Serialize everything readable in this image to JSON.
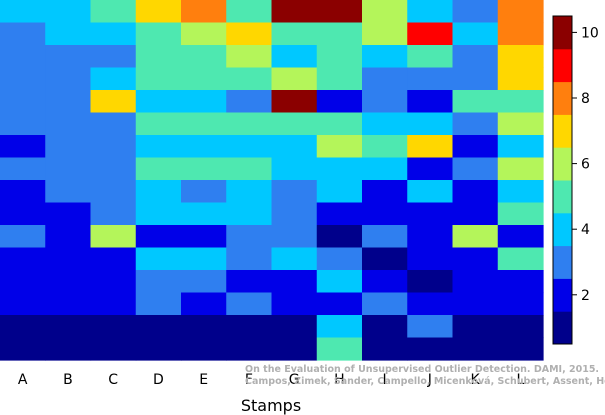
{
  "chart_data": {
    "type": "heatmap",
    "title": "",
    "xlabel": "Stamps",
    "ylabel": "",
    "categories": [
      "A",
      "B",
      "C",
      "D",
      "E",
      "F",
      "G",
      "H",
      "I",
      "J",
      "K",
      "L"
    ],
    "colorbar": {
      "min": 0.5,
      "max": 10.5,
      "ticks": [
        2,
        4,
        6,
        8,
        10
      ],
      "colors": [
        "#00008b",
        "#0000e8",
        "#2f7ff0",
        "#00c8ff",
        "#4ee8b0",
        "#b4f55a",
        "#ffd700",
        "#ff7f0e",
        "#ff0000",
        "#8b0000"
      ]
    },
    "values": [
      [
        4,
        4,
        5,
        7,
        8,
        5,
        10,
        10,
        6,
        4,
        3,
        8
      ],
      [
        3,
        4,
        4,
        5,
        6,
        7,
        5,
        5,
        6,
        9,
        4,
        8
      ],
      [
        3,
        3,
        3,
        5,
        5,
        6,
        4,
        5,
        4,
        5,
        3,
        7
      ],
      [
        3,
        3,
        4,
        5,
        5,
        5,
        6,
        5,
        3,
        3,
        3,
        7
      ],
      [
        3,
        3,
        7,
        4,
        4,
        3,
        10,
        2,
        3,
        2,
        5,
        5
      ],
      [
        3,
        3,
        3,
        5,
        5,
        5,
        5,
        5,
        4,
        4,
        3,
        6
      ],
      [
        2,
        3,
        3,
        4,
        4,
        4,
        4,
        6,
        5,
        7,
        2,
        4
      ],
      [
        3,
        3,
        3,
        5,
        5,
        5,
        4,
        4,
        4,
        2,
        3,
        6
      ],
      [
        2,
        3,
        3,
        4,
        3,
        4,
        3,
        4,
        2,
        4,
        2,
        4
      ],
      [
        2,
        2,
        3,
        4,
        4,
        4,
        3,
        2,
        2,
        2,
        2,
        5
      ],
      [
        3,
        2,
        6,
        2,
        2,
        3,
        3,
        1,
        3,
        2,
        6,
        2
      ],
      [
        2,
        2,
        2,
        4,
        4,
        3,
        4,
        3,
        1,
        2,
        2,
        5
      ],
      [
        2,
        2,
        2,
        3,
        3,
        2,
        2,
        4,
        2,
        1,
        2,
        2
      ],
      [
        2,
        2,
        2,
        3,
        2,
        3,
        2,
        2,
        3,
        2,
        2,
        2
      ],
      [
        1,
        1,
        1,
        1,
        1,
        1,
        1,
        4,
        1,
        3,
        1,
        1
      ],
      [
        1,
        1,
        1,
        1,
        1,
        1,
        1,
        5,
        1,
        1,
        1,
        1
      ]
    ]
  },
  "watermark": {
    "line1": "On the Evaluation of Unsupervised Outlier Detection. DAMI, 2015.",
    "line2": "Campos, Zimek, Sander, Campello, Micenková, Schubert, Assent, Houle"
  }
}
